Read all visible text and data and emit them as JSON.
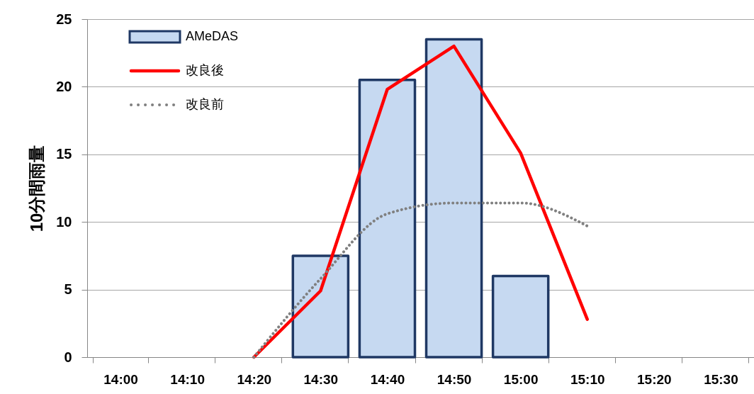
{
  "chart_data": {
    "type": "bar",
    "ylabel": "10分間雨量",
    "categories": [
      "14:00",
      "14:10",
      "14:20",
      "14:30",
      "14:40",
      "14:50",
      "15:00",
      "15:10",
      "15:20",
      "15:30"
    ],
    "series": [
      {
        "name": "AMeDAS",
        "color": "#c6d9f1",
        "values": [
          null,
          null,
          null,
          7.5,
          20.5,
          23.5,
          6,
          null,
          null,
          null
        ]
      },
      {
        "name": "改良後",
        "type": "line",
        "color": "#ff0000",
        "line_style": "solid",
        "values": [
          null,
          null,
          0,
          4.9,
          19.8,
          23,
          15.1,
          2.8,
          null,
          null
        ]
      },
      {
        "name": "改良前",
        "type": "line",
        "color": "#808080",
        "line_style": "dotted",
        "values": [
          null,
          null,
          0,
          5.8,
          10.6,
          11.4,
          11.4,
          9.7,
          null,
          null
        ]
      }
    ],
    "ylim": [
      0,
      25
    ],
    "yticks": [
      0,
      5,
      10,
      15,
      20,
      25
    ],
    "grid": "y",
    "legend": "top left"
  }
}
